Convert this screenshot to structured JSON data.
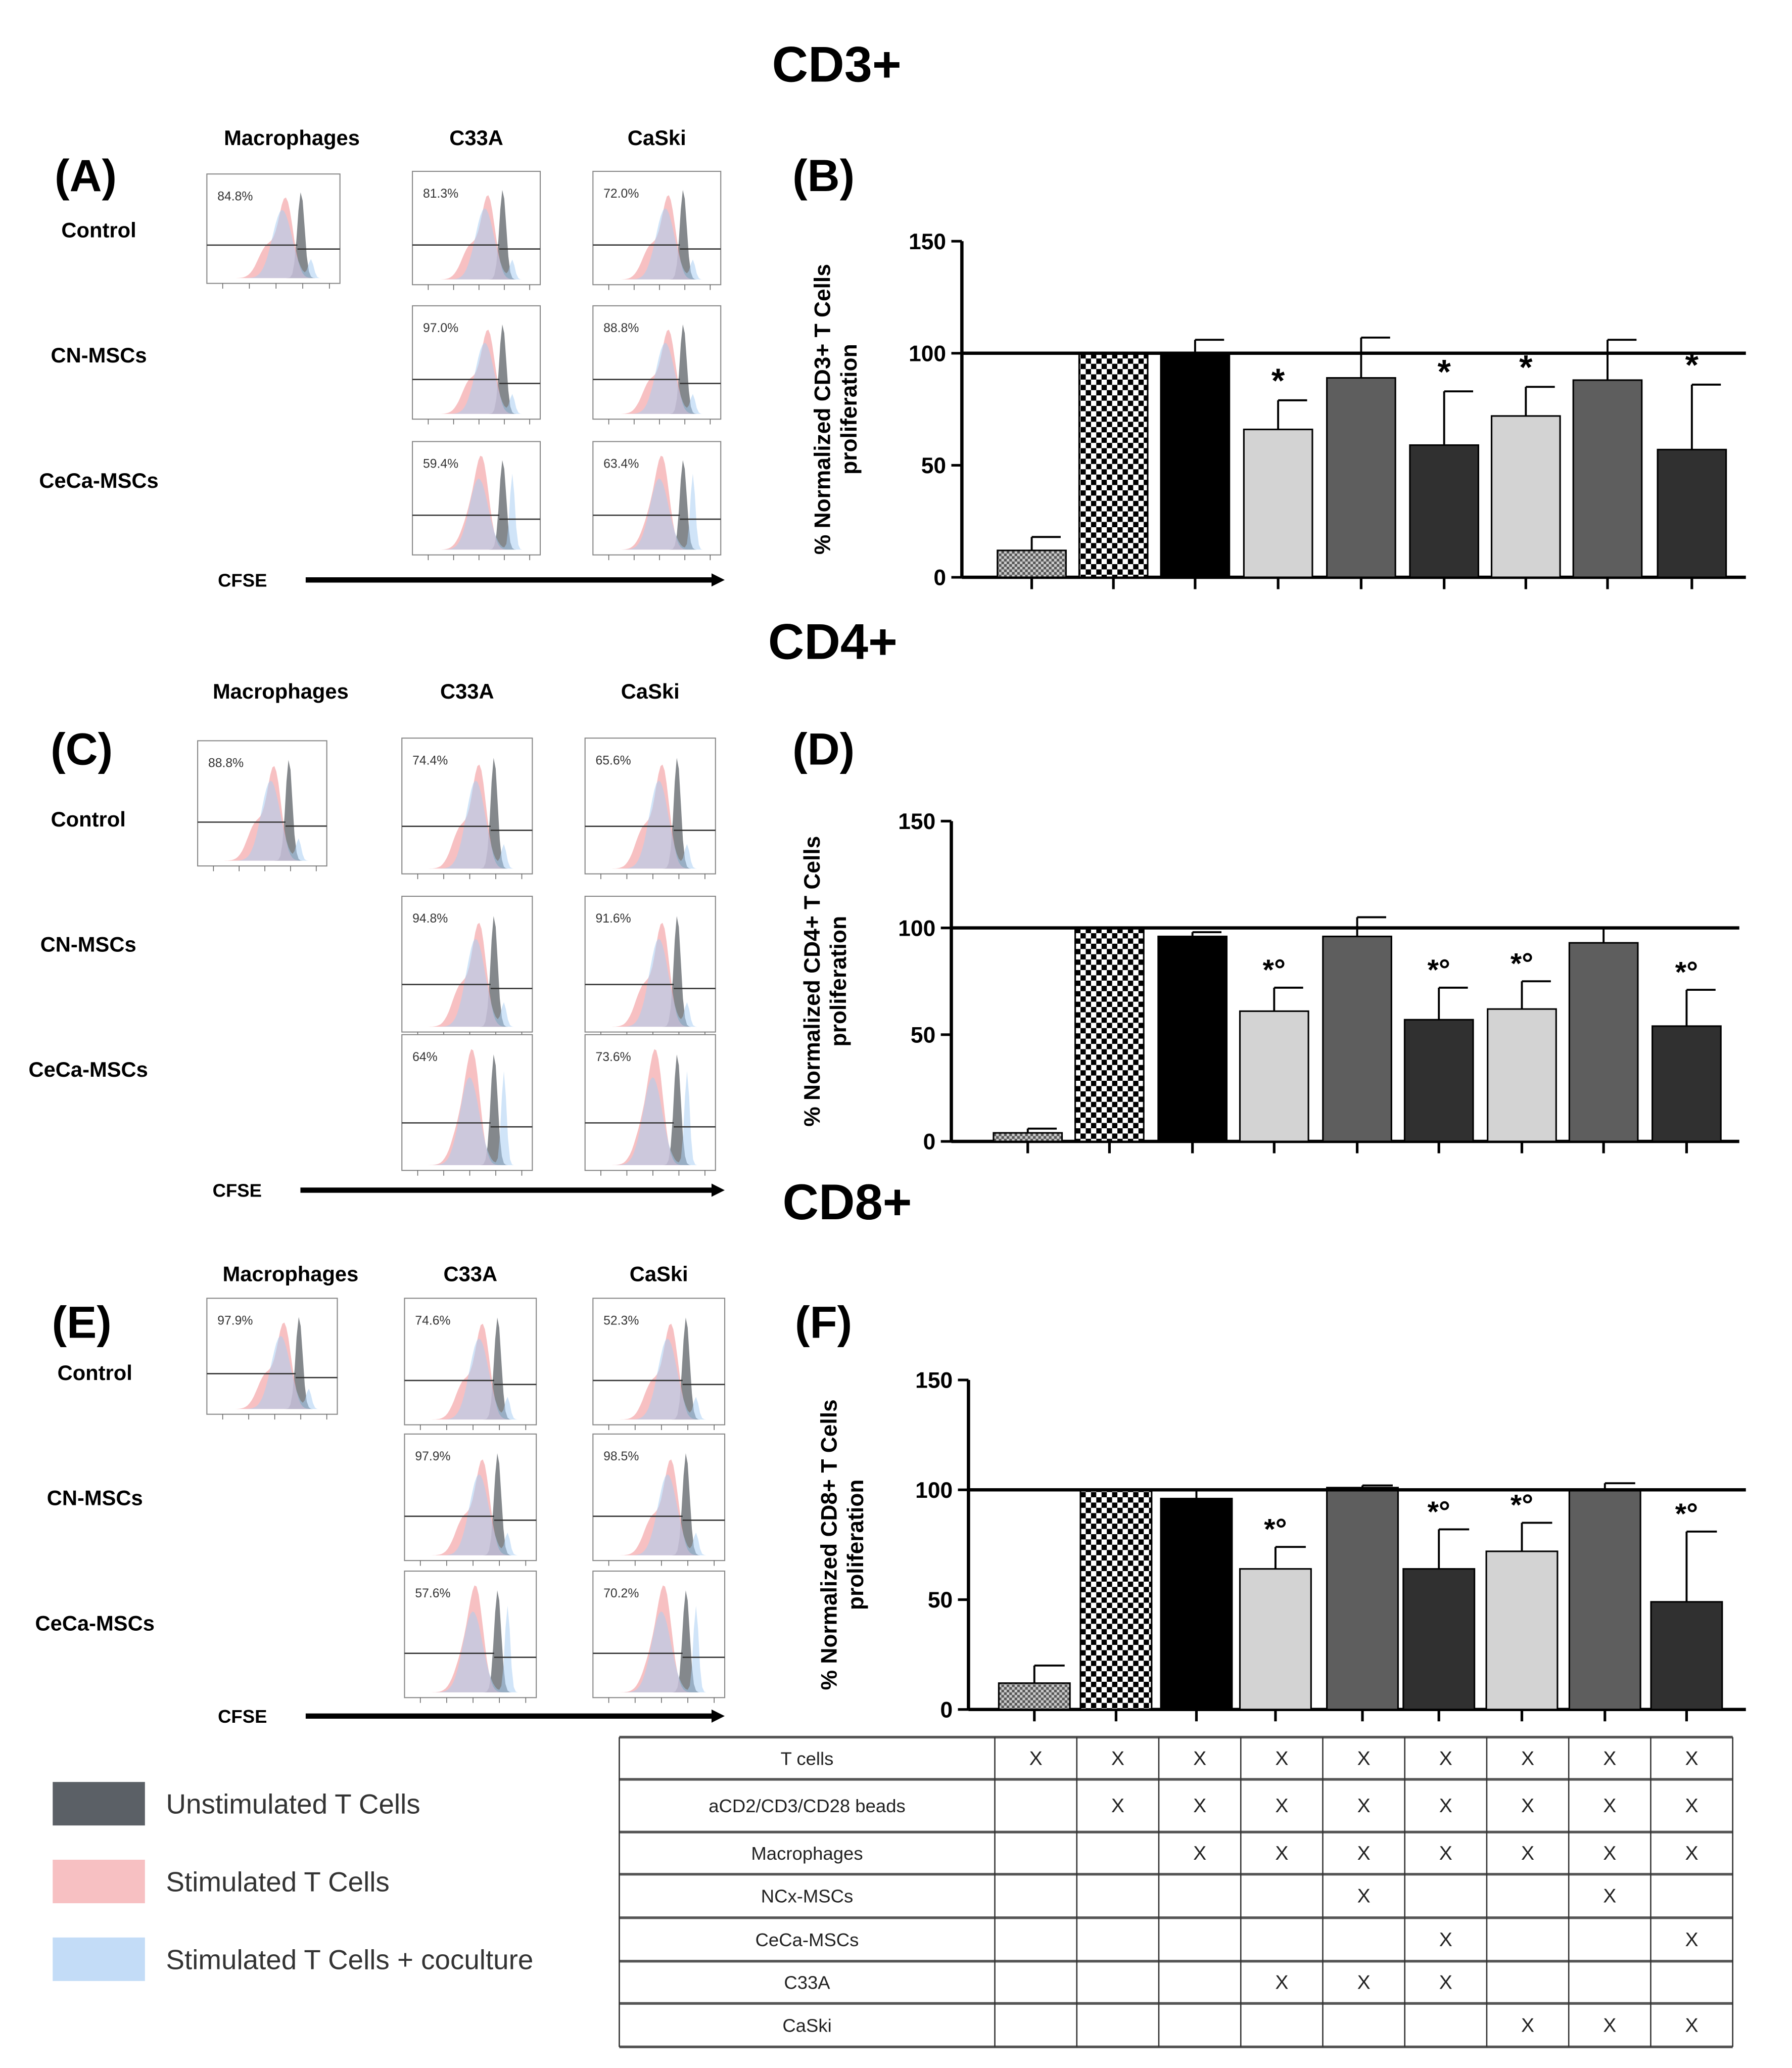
{
  "colors": {
    "unstimulated": "#5b6066",
    "stimulated": "#f4a5a8",
    "coculture": "#a9cdf3",
    "bar_light": "#d3d3d3",
    "bar_mid": "#5e5e5e",
    "bar_dark": "#303030",
    "bar_black": "#000000"
  },
  "sections": [
    {
      "title": "CD3+",
      "hist_label": "(A)",
      "chart_label": "(B)"
    },
    {
      "title": "CD4+",
      "hist_label": "(C)",
      "chart_label": "(D)"
    },
    {
      "title": "CD8+",
      "hist_label": "(E)",
      "chart_label": "(F)"
    }
  ],
  "histograms": {
    "column_headers": [
      "Macrophages",
      "C33A",
      "CaSki"
    ],
    "row_labels": [
      "Control",
      "CN-MSCs",
      "CeCa-MSCs"
    ],
    "x_axis_label": "CFSE",
    "panels": [
      {
        "macrophages_control": "84.8%",
        "c33a": [
          "81.3%",
          "97.0%",
          "59.4%"
        ],
        "caski": [
          "72.0%",
          "88.8%",
          "63.4%"
        ]
      },
      {
        "macrophages_control": "88.8%",
        "c33a": [
          "74.4%",
          "94.8%",
          "64%"
        ],
        "caski": [
          "65.6%",
          "91.6%",
          "73.6%"
        ]
      },
      {
        "macrophages_control": "97.9%",
        "c33a": [
          "74.6%",
          "97.9%",
          "57.6%"
        ],
        "caski": [
          "52.3%",
          "98.5%",
          "70.2%"
        ]
      }
    ]
  },
  "legend": [
    {
      "label": "Unstimulated T Cells",
      "color_key": "unstimulated"
    },
    {
      "label": "Stimulated T Cells",
      "color_key": "stimulated"
    },
    {
      "label": "Stimulated T Cells + coculture",
      "color_key": "coculture"
    }
  ],
  "chart_data": [
    {
      "type": "bar",
      "title": "CD3+",
      "ylabel": "% Normalized CD3+ T Cells proliferation",
      "ylim": [
        0,
        150
      ],
      "yticks": [
        "0",
        "50",
        "100",
        "150"
      ],
      "reference_line": 100,
      "values": [
        12,
        100,
        100,
        66,
        89,
        59,
        72,
        88,
        57
      ],
      "error_upper": [
        18,
        100,
        106,
        79,
        107,
        83,
        85,
        106,
        86
      ],
      "significance": [
        "",
        "",
        "",
        "*",
        "",
        "*",
        "*",
        "",
        "*"
      ]
    },
    {
      "type": "bar",
      "title": "CD4+",
      "ylabel": "% Normalized CD4+ T Cells proliferation",
      "ylim": [
        0,
        150
      ],
      "yticks": [
        "0",
        "50",
        "100",
        "150"
      ],
      "reference_line": 100,
      "values": [
        4,
        100,
        96,
        61,
        96,
        57,
        62,
        93,
        54
      ],
      "error_upper": [
        6,
        100,
        98,
        72,
        105,
        72,
        75,
        100,
        71
      ],
      "significance": [
        "",
        "",
        "",
        "*o",
        "",
        "*o",
        "*o",
        "",
        "*o"
      ]
    },
    {
      "type": "bar",
      "title": "CD8+",
      "ylabel": "% Normalized CD8+ T Cells proliferation",
      "ylim": [
        0,
        150
      ],
      "yticks": [
        "0",
        "50",
        "100",
        "150"
      ],
      "reference_line": 100,
      "values": [
        12,
        100,
        96,
        64,
        101,
        64,
        72,
        100,
        49
      ],
      "error_upper": [
        20,
        100,
        100,
        74,
        102,
        82,
        85,
        103,
        81
      ],
      "significance": [
        "",
        "",
        "",
        "*o",
        "",
        "*o",
        "*o",
        "",
        "*o"
      ]
    }
  ],
  "condition_table": {
    "rows": [
      {
        "label": "T cells",
        "marks": [
          "X",
          "X",
          "X",
          "X",
          "X",
          "X",
          "X",
          "X",
          "X"
        ]
      },
      {
        "label": "aCD2/CD3/CD28 beads",
        "marks": [
          "",
          "X",
          "X",
          "X",
          "X",
          "X",
          "X",
          "X",
          "X"
        ]
      },
      {
        "label": "Macrophages",
        "marks": [
          "",
          "",
          "X",
          "X",
          "X",
          "X",
          "X",
          "X",
          "X"
        ]
      },
      {
        "label": "NCx-MSCs",
        "marks": [
          "",
          "",
          "",
          "",
          "X",
          "",
          "",
          "X",
          ""
        ]
      },
      {
        "label": "CeCa-MSCs",
        "marks": [
          "",
          "",
          "",
          "",
          "",
          "X",
          "",
          "",
          "X"
        ]
      },
      {
        "label": "C33A",
        "marks": [
          "",
          "",
          "",
          "X",
          "X",
          "X",
          "",
          "",
          ""
        ]
      },
      {
        "label": "CaSki",
        "marks": [
          "",
          "",
          "",
          "",
          "",
          "",
          "X",
          "X",
          "X"
        ]
      }
    ]
  }
}
